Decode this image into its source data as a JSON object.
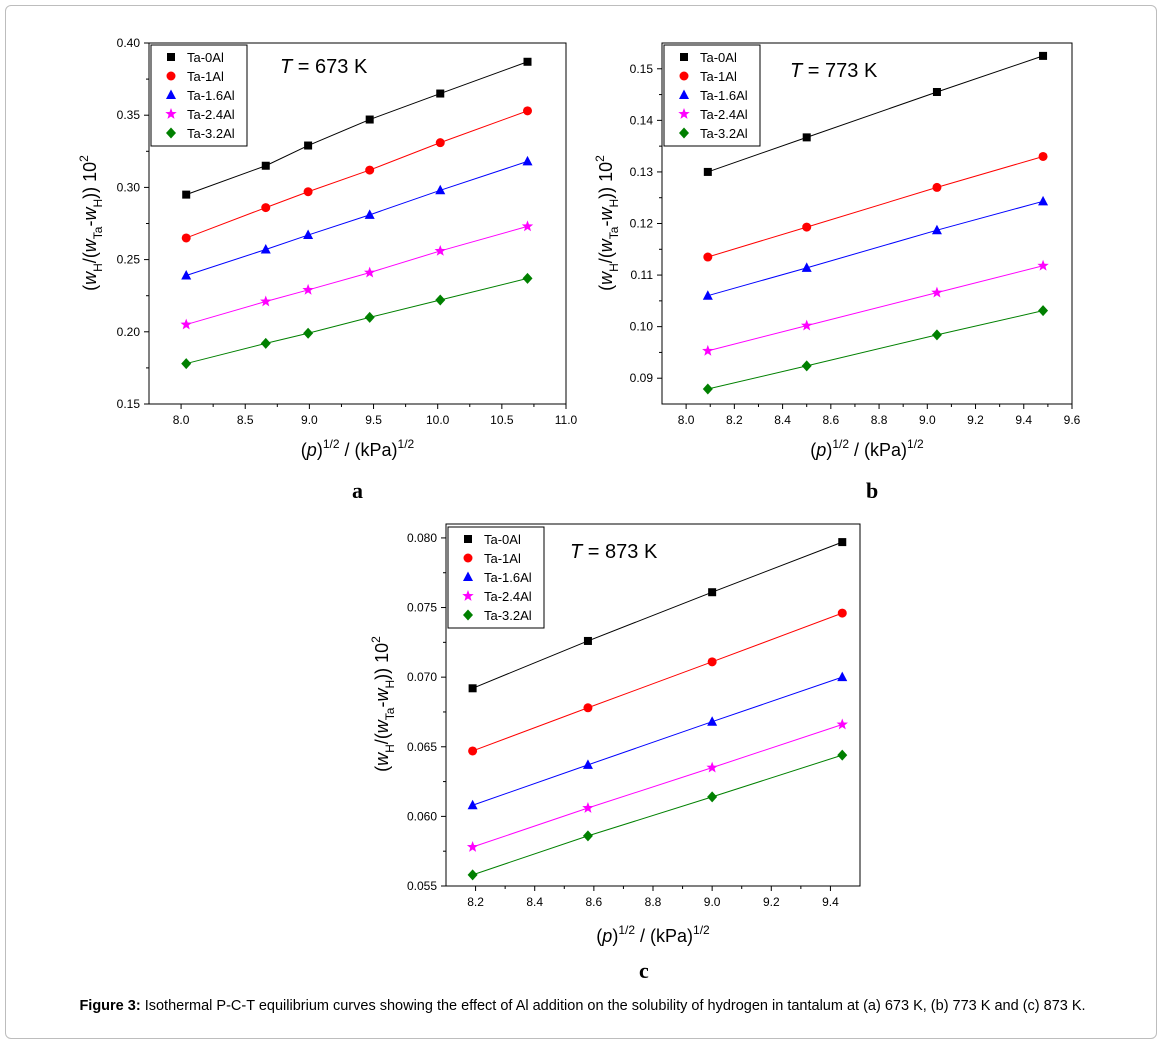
{
  "figure": {
    "caption_label": "Figure 3:",
    "caption_text": " Isothermal P-C-T equilibrium curves showing the effect of Al addition on the solubility of hydrogen in tantalum at (a) 673 K, (b) 773 K and (c) 873 K."
  },
  "series_colors": [
    "#000000",
    "#ff0000",
    "#0000ff",
    "#ff00ff",
    "#008000"
  ],
  "series_markers": [
    "square",
    "circle",
    "triangle",
    "star",
    "diamond"
  ],
  "chart_data": [
    {
      "type": "line",
      "panel_label": "a",
      "annotation": {
        "italic": "T",
        "rest": " = 673 K"
      },
      "xlabel": {
        "main": "(p)",
        "sup1": "1/2",
        "mid": " / (kPa)",
        "sup2": "1/2"
      },
      "ylabel": "(w_H/(w_Ta-w_H)) 10^2",
      "xlim": [
        7.75,
        11.0
      ],
      "ylim": [
        0.15,
        0.4
      ],
      "xticks": [
        8.0,
        8.5,
        9.0,
        9.5,
        10.0,
        10.5,
        11.0
      ],
      "xtick_labels": [
        "8.0",
        "8.5",
        "9.0",
        "9.5",
        "10.0",
        "10.5",
        "11.0"
      ],
      "yticks": [
        0.15,
        0.2,
        0.25,
        0.3,
        0.35,
        0.4
      ],
      "ytick_labels": [
        "0.15",
        "0.20",
        "0.25",
        "0.30",
        "0.35",
        "0.40"
      ],
      "legend_position": "top-left",
      "x": [
        8.04,
        8.66,
        8.99,
        9.47,
        10.02,
        10.7
      ],
      "series": [
        {
          "name": "Ta-0Al",
          "values": [
            0.295,
            0.315,
            0.329,
            0.347,
            0.365,
            0.387
          ]
        },
        {
          "name": "Ta-1Al",
          "values": [
            0.265,
            0.286,
            0.297,
            0.312,
            0.331,
            0.353
          ]
        },
        {
          "name": "Ta-1.6Al",
          "values": [
            0.239,
            0.257,
            0.267,
            0.281,
            0.298,
            0.318
          ]
        },
        {
          "name": "Ta-2.4Al",
          "values": [
            0.205,
            0.221,
            0.229,
            0.241,
            0.256,
            0.273
          ]
        },
        {
          "name": "Ta-3.2Al",
          "values": [
            0.178,
            0.192,
            0.199,
            0.21,
            0.222,
            0.237
          ]
        }
      ]
    },
    {
      "type": "line",
      "panel_label": "b",
      "annotation": {
        "italic": "T",
        "rest": " = 773 K"
      },
      "xlabel": {
        "main": "(p)",
        "sup1": "1/2",
        "mid": " / (kPa)",
        "sup2": "1/2"
      },
      "ylabel": "(w_H/(w_Ta-w_H)) 10^2",
      "xlim": [
        7.9,
        9.6
      ],
      "ylim": [
        0.085,
        0.155
      ],
      "xticks": [
        8.0,
        8.2,
        8.4,
        8.6,
        8.8,
        9.0,
        9.2,
        9.4,
        9.6
      ],
      "xtick_labels": [
        "8.0",
        "8.2",
        "8.4",
        "8.6",
        "8.8",
        "9.0",
        "9.2",
        "9.4",
        "9.6"
      ],
      "yticks": [
        0.09,
        0.1,
        0.11,
        0.12,
        0.13,
        0.14,
        0.15
      ],
      "ytick_labels": [
        "0.09",
        "0.10",
        "0.11",
        "0.12",
        "0.13",
        "0.14",
        "0.15"
      ],
      "legend_position": "top-left",
      "x": [
        8.09,
        8.5,
        9.04,
        9.48
      ],
      "series": [
        {
          "name": "Ta-0Al",
          "values": [
            0.13,
            0.1367,
            0.1455,
            0.1525
          ]
        },
        {
          "name": "Ta-1Al",
          "values": [
            0.1135,
            0.1193,
            0.127,
            0.133
          ]
        },
        {
          "name": "Ta-1.6Al",
          "values": [
            0.106,
            0.1114,
            0.1187,
            0.1243
          ]
        },
        {
          "name": "Ta-2.4Al",
          "values": [
            0.0953,
            0.1002,
            0.1066,
            0.1118
          ]
        },
        {
          "name": "Ta-3.2Al",
          "values": [
            0.0879,
            0.0924,
            0.0984,
            0.1031
          ]
        }
      ]
    },
    {
      "type": "line",
      "panel_label": "c",
      "annotation": {
        "italic": "T",
        "rest": " = 873 K"
      },
      "xlabel": {
        "main": "(p)",
        "sup1": "1/2",
        "mid": " / (kPa)",
        "sup2": "1/2"
      },
      "ylabel": "(w_H/(w_Ta-w_H)) 10^2",
      "xlim": [
        8.1,
        9.5
      ],
      "ylim": [
        0.055,
        0.081
      ],
      "xticks": [
        8.2,
        8.4,
        8.6,
        8.8,
        9.0,
        9.2,
        9.4
      ],
      "xtick_labels": [
        "8.2",
        "8.4",
        "8.6",
        "8.8",
        "9.0",
        "9.2",
        "9.4"
      ],
      "yticks": [
        0.055,
        0.06,
        0.065,
        0.07,
        0.075,
        0.08
      ],
      "ytick_labels": [
        "0.055",
        "0.060",
        "0.065",
        "0.070",
        "0.075",
        "0.080"
      ],
      "legend_position": "top-left",
      "x": [
        8.19,
        8.58,
        9.0,
        9.44
      ],
      "series": [
        {
          "name": "Ta-0Al",
          "values": [
            0.0692,
            0.0726,
            0.0761,
            0.0797
          ]
        },
        {
          "name": "Ta-1Al",
          "values": [
            0.0647,
            0.0678,
            0.0711,
            0.0746
          ]
        },
        {
          "name": "Ta-1.6Al",
          "values": [
            0.0608,
            0.0637,
            0.0668,
            0.07
          ]
        },
        {
          "name": "Ta-2.4Al",
          "values": [
            0.0578,
            0.0606,
            0.0635,
            0.0666
          ]
        },
        {
          "name": "Ta-3.2Al",
          "values": [
            0.0558,
            0.0586,
            0.0614,
            0.0644
          ]
        }
      ]
    }
  ]
}
